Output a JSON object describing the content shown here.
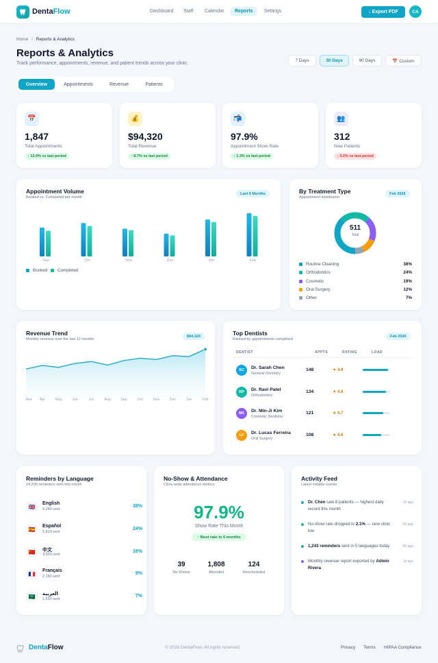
{
  "app": {
    "brand_a": "Denta",
    "brand_b": "Flow"
  },
  "nav": {
    "items": [
      "Dashboard",
      "Staff",
      "Calendar",
      "Reports",
      "Settings"
    ],
    "export": "↓ Export PDF",
    "avatar": "CA"
  },
  "breadcrumb": {
    "home": "Home",
    "sep": "/",
    "current": "Reports & Analytics"
  },
  "page": {
    "title": "Reports & Analytics",
    "subtitle": "Track performance, appointments, revenue, and patient trends across your clinic."
  },
  "ranges": [
    "7 Days",
    "30 Days",
    "90 Days",
    "📅 Custom"
  ],
  "tabs": [
    "Overview",
    "Appointments",
    "Revenue",
    "Patients"
  ],
  "kpis": [
    {
      "icon": "📅",
      "value": "1,847",
      "label": "Total Appointments",
      "change": "↑ 12.4% vs last period",
      "dir": "up"
    },
    {
      "icon": "💰",
      "value": "$94,320",
      "label": "Total Revenue",
      "change": "↑ 8.7% vs last period",
      "dir": "up"
    },
    {
      "icon": "📬",
      "value": "97.9%",
      "label": "Appointment Show Rate",
      "change": "↑ 1.3% vs last period",
      "dir": "up"
    },
    {
      "icon": "👥",
      "value": "312",
      "label": "New Patients",
      "change": "↓ 3.2% vs last period",
      "dir": "down"
    }
  ],
  "volume": {
    "title": "Appointment Volume",
    "subtitle": "Booked vs. Completed per month",
    "pill": "Last 6 Months",
    "legend": [
      "Booked",
      "Completed"
    ]
  },
  "treatment": {
    "title": "By Treatment Type",
    "subtitle": "Appointment distribution",
    "pill": "Feb 2026",
    "total": "511",
    "total_label": "Total",
    "items": [
      {
        "name": "Routine Cleaning",
        "pct": "38%"
      },
      {
        "name": "Orthodontics",
        "pct": "24%"
      },
      {
        "name": "Cosmetic",
        "pct": "19%"
      },
      {
        "name": "Oral Surgery",
        "pct": "12%"
      },
      {
        "name": "Other",
        "pct": "7%"
      }
    ]
  },
  "revenue": {
    "title": "Revenue Trend",
    "subtitle": "Monthly revenue over the last 12 months",
    "pill": "$94,320"
  },
  "dentists": {
    "title": "Top Dentists",
    "subtitle": "Ranked by appointments completed",
    "pill": "Feb 2026",
    "headers": [
      "DENTIST",
      "APPTS",
      "RATING",
      "LOAD"
    ],
    "rows": [
      {
        "initials": "SC",
        "name": "Dr. Sarah Chen",
        "spec": "General Dentistry",
        "appts": "148",
        "rating": "★ 4.9",
        "load": 0.92
      },
      {
        "initials": "RP",
        "name": "Dr. Ravi Patel",
        "spec": "Orthodontics",
        "appts": "134",
        "rating": "★ 4.8",
        "load": 0.85
      },
      {
        "initials": "MK",
        "name": "Dr. Min-Ji Kim",
        "spec": "Cosmetic Dentistry",
        "appts": "121",
        "rating": "★ 4.7",
        "load": 0.76
      },
      {
        "initials": "LF",
        "name": "Dr. Lucas Ferreira",
        "spec": "Oral Surgery",
        "appts": "108",
        "rating": "★ 4.6",
        "load": 0.68
      }
    ]
  },
  "reminders": {
    "title": "Reminders by Language",
    "subtitle": "24,200 reminders sent this month",
    "rows": [
      {
        "flag": "🇬🇧",
        "name": "English",
        "sent": "9,240 sent",
        "pct": "38%"
      },
      {
        "flag": "🇪🇸",
        "name": "Español",
        "sent": "5,810 sent",
        "pct": "24%"
      },
      {
        "flag": "🇨🇳",
        "name": "中文",
        "sent": "3,920 sent",
        "pct": "16%"
      },
      {
        "flag": "🇫🇷",
        "name": "Français",
        "sent": "2,180 sent",
        "pct": "9%"
      },
      {
        "flag": "🇸🇦",
        "name": "العربية",
        "sent": "1,650 sent",
        "pct": "7%"
      }
    ]
  },
  "noshow": {
    "title": "No-Show & Attendance",
    "subtitle": "Clinic-wide attendance metrics",
    "big": "97.9%",
    "big_label": "Show Rate This Month",
    "badge": "↑ Best rate in 6 months",
    "stats": [
      {
        "value": "39",
        "label": "No-Shows"
      },
      {
        "value": "1,808",
        "label": "Attended"
      },
      {
        "value": "124",
        "label": "Rescheduled"
      }
    ]
  },
  "activity": {
    "title": "Activity Feed",
    "subtitle": "Latest notable events",
    "items": [
      {
        "pre": "",
        "bold": "Dr. Chen",
        "post": " saw 8 patients — highest daily record this month",
        "time": "2h ago"
      },
      {
        "pre": "No-show rate dropped to ",
        "bold": "2.1%",
        "post": " — new clinic low",
        "time": "5h ago"
      },
      {
        "pre": "",
        "bold": "1,243 reminders",
        "post": " sent in 5 languages today",
        "time": "6h ago"
      },
      {
        "pre": "Monthly revenue report exported by ",
        "bold": "Admin Rivera",
        "post": "",
        "time": "1d ago"
      }
    ]
  },
  "footer": {
    "brand_a": "Denta",
    "brand_b": "Flow",
    "copyright": "© 2026 DentaFlow. All rights reserved.",
    "links": [
      "Privacy",
      "Terms",
      "HIPAA Compliance"
    ]
  },
  "colors": {
    "accent": "#0ea5c6",
    "teal": "#14b8a6",
    "purple": "#8b5cf6",
    "amber": "#f59e0b",
    "gray": "#94a3b8",
    "green": "#10b981"
  },
  "chart_data": [
    {
      "type": "bar",
      "title": "Appointment Volume",
      "categories": [
        "Sep",
        "Oct",
        "Nov",
        "Dec",
        "Jan",
        "Feb"
      ],
      "series": [
        {
          "name": "Booked",
          "values": [
            272,
            315,
            262,
            215,
            348,
            408
          ]
        },
        {
          "name": "Completed",
          "values": [
            242,
            287,
            248,
            199,
            325,
            381
          ]
        }
      ],
      "ylim": [
        0,
        420
      ]
    },
    {
      "type": "pie",
      "title": "By Treatment Type",
      "categories": [
        "Routine Cleaning",
        "Orthodontics",
        "Cosmetic",
        "Oral Surgery",
        "Other"
      ],
      "values": [
        38,
        24,
        19,
        12,
        7
      ]
    },
    {
      "type": "area",
      "title": "Revenue Trend",
      "categories": [
        "Mar",
        "Apr",
        "May",
        "Jun",
        "Jul",
        "Aug",
        "Sep",
        "Oct",
        "Nov",
        "Dec",
        "Jan",
        "Feb"
      ],
      "values": [
        64000,
        69500,
        66500,
        72500,
        75500,
        70000,
        77000,
        80500,
        78500,
        84500,
        83000,
        94320
      ],
      "ylim": [
        20000,
        100000
      ]
    }
  ]
}
